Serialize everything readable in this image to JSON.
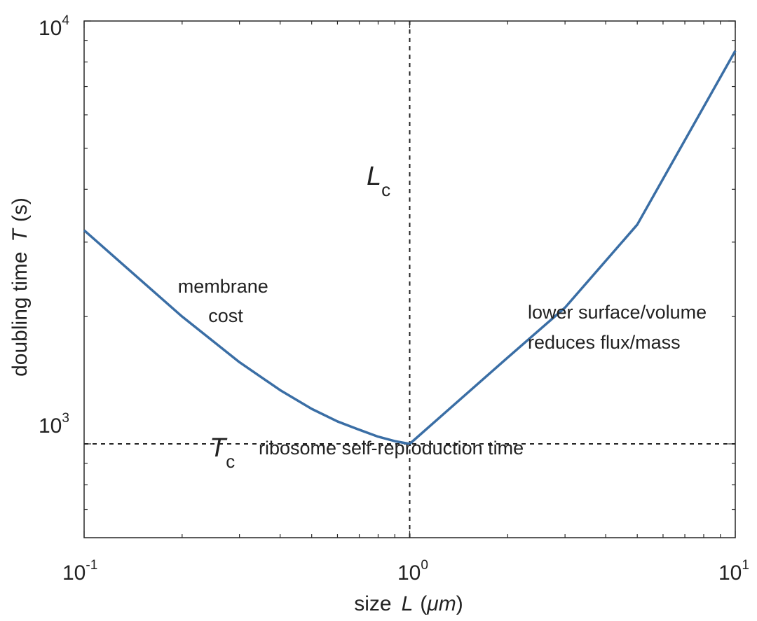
{
  "chart_data": {
    "type": "line",
    "xscale": "log",
    "yscale": "log",
    "xlim": [
      0.1,
      10
    ],
    "ylim": [
      600,
      10000
    ],
    "xlabel": {
      "prefix": "size",
      "symbol": "L",
      "unit_open": "(",
      "unit": "μm",
      "unit_close": ")"
    },
    "ylabel": {
      "prefix": "doubling time",
      "symbol": "T",
      "unit": "(s)"
    },
    "xticks": [
      {
        "value": 0.1,
        "base": "10",
        "exp": "-1"
      },
      {
        "value": 1,
        "base": "10",
        "exp": "0"
      },
      {
        "value": 10,
        "base": "10",
        "exp": "1"
      }
    ],
    "yticks": [
      {
        "value": 1000,
        "base": "10",
        "exp": "3"
      },
      {
        "value": 10000,
        "base": "10",
        "exp": "4"
      }
    ],
    "series": [
      {
        "name": "doubling time",
        "color": "#3a6ea5",
        "x": [
          0.1,
          0.15,
          0.2,
          0.3,
          0.4,
          0.5,
          0.6,
          0.7,
          0.8,
          0.9,
          1.0,
          2,
          3,
          5,
          10
        ],
        "y": [
          3200,
          2430,
          2000,
          1560,
          1340,
          1210,
          1130,
          1080,
          1040,
          1015,
          1000,
          1600,
          2100,
          3300,
          8500
        ]
      }
    ],
    "reference_lines": [
      {
        "orientation": "vertical",
        "value": 1,
        "style": "dashed",
        "label": "L",
        "label_sub": "c"
      },
      {
        "orientation": "horizontal",
        "value": 1000,
        "style": "dashed",
        "label": "T",
        "label_sub": "c"
      }
    ],
    "annotations": [
      {
        "lines": [
          "membrane",
          "cost"
        ]
      },
      {
        "lines": [
          "lower surface/volume",
          "reduces flux/mass"
        ]
      },
      {
        "lines": [
          "ribosome self-reproduction time"
        ]
      }
    ]
  }
}
